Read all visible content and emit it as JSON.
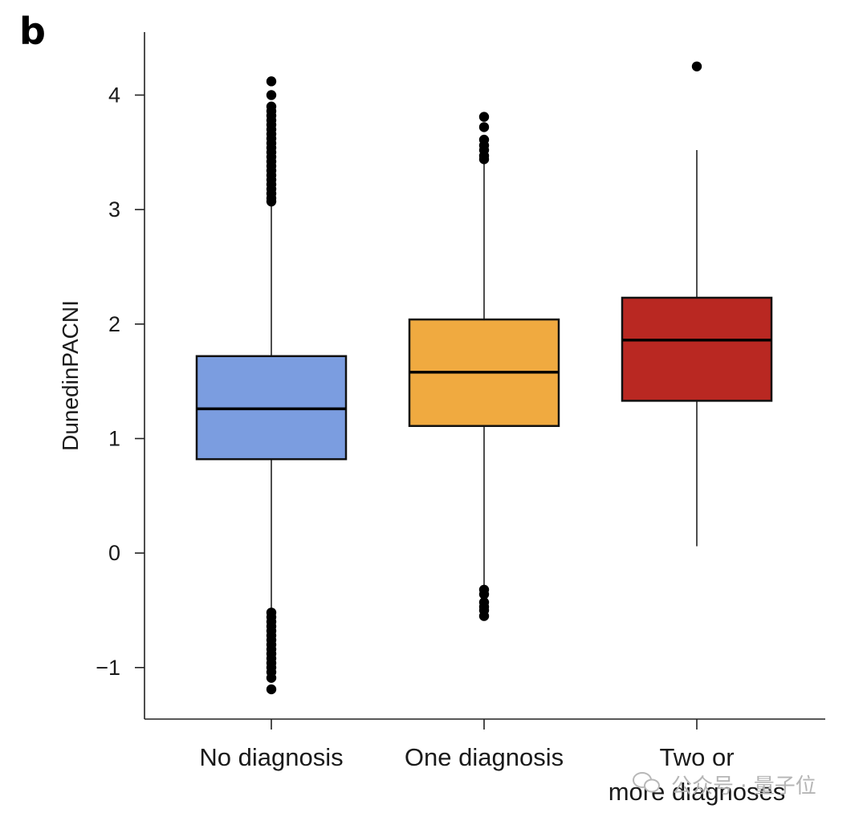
{
  "panel_label": "b",
  "watermark": {
    "text": "公众号 · 量子位",
    "icon": "wechat-icon"
  },
  "chart_data": {
    "type": "box",
    "title": "",
    "xlabel": "",
    "ylabel": "DunedinPACNI",
    "ylim": [
      -1.45,
      4.55
    ],
    "yticks": [
      -1,
      0,
      1,
      2,
      3,
      4
    ],
    "ytick_labels": [
      "−1",
      "0",
      "1",
      "2",
      "3",
      "4"
    ],
    "grid": false,
    "categories": [
      {
        "label_lines": [
          "No diagnosis"
        ]
      },
      {
        "label_lines": [
          "One diagnosis"
        ]
      },
      {
        "label_lines": [
          "Two or",
          "more diagnoses"
        ]
      }
    ],
    "boxes": [
      {
        "category": "No diagnosis",
        "color": "#7b9de0",
        "q1": 0.82,
        "median": 1.26,
        "q3": 1.72,
        "whisker_low": -0.5,
        "whisker_high": 3.05,
        "outliers": [
          4.12,
          4.0,
          3.9,
          3.86,
          3.82,
          3.78,
          3.74,
          3.7,
          3.66,
          3.62,
          3.58,
          3.54,
          3.5,
          3.46,
          3.42,
          3.38,
          3.34,
          3.3,
          3.26,
          3.22,
          3.18,
          3.14,
          3.1,
          3.07,
          -0.52,
          -0.56,
          -0.6,
          -0.64,
          -0.68,
          -0.72,
          -0.76,
          -0.8,
          -0.84,
          -0.88,
          -0.92,
          -0.96,
          -1.0,
          -1.04,
          -1.09,
          -1.19
        ]
      },
      {
        "category": "One diagnosis",
        "color": "#f0aa40",
        "q1": 1.11,
        "median": 1.58,
        "q3": 2.04,
        "whisker_low": -0.28,
        "whisker_high": 3.42,
        "outliers": [
          3.81,
          3.72,
          3.61,
          3.56,
          3.52,
          3.47,
          3.44,
          -0.32,
          -0.36,
          -0.43,
          -0.47,
          -0.5,
          -0.55
        ]
      },
      {
        "category": "Two or more diagnoses",
        "color": "#b92822",
        "q1": 1.33,
        "median": 1.86,
        "q3": 2.23,
        "whisker_low": 0.06,
        "whisker_high": 3.52,
        "outliers": [
          4.25
        ]
      }
    ]
  }
}
